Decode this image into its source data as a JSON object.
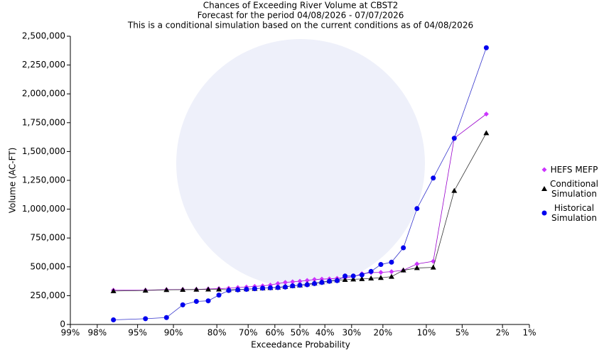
{
  "chart_data": {
    "type": "line",
    "title": "Chances of Exceeding River Volume at CBST2",
    "subtitle": "Forecast for the period 04/08/2026 - 07/07/2026",
    "note": "This is a conditional simulation based on the current conditions as of 04/08/2026",
    "x_label": "Exceedance Probability",
    "y_label": "Volume (AC-FT)",
    "xscale": "probability",
    "grid": false,
    "legend_position": "right",
    "xlim": [
      99,
      1
    ],
    "xticks": [
      {
        "value": 99,
        "label": "99%"
      },
      {
        "value": 98,
        "label": "98%"
      },
      {
        "value": 95,
        "label": "95%"
      },
      {
        "value": 90,
        "label": "90%"
      },
      {
        "value": 80,
        "label": "80%"
      },
      {
        "value": 70,
        "label": "70%"
      },
      {
        "value": 60,
        "label": "60%"
      },
      {
        "value": 50,
        "label": "50%"
      },
      {
        "value": 40,
        "label": "40%"
      },
      {
        "value": 30,
        "label": "30%"
      },
      {
        "value": 20,
        "label": "20%"
      },
      {
        "value": 10,
        "label": "10%"
      },
      {
        "value": 5,
        "label": "5%"
      },
      {
        "value": 2,
        "label": "2%"
      },
      {
        "value": 1,
        "label": "1%"
      }
    ],
    "ylim": [
      0,
      2500000
    ],
    "yticks": [
      0,
      {
        "value": 250000,
        "label": "250,000"
      },
      {
        "value": 500000,
        "label": "500,000"
      },
      {
        "value": 750000,
        "label": "750,000"
      },
      {
        "value": 1000000,
        "label": "1,000,000"
      },
      {
        "value": 1250000,
        "label": "1,250,000"
      },
      {
        "value": 1500000,
        "label": "1,500,000"
      },
      {
        "value": 1750000,
        "label": "1,750,000"
      },
      {
        "value": 2000000,
        "label": "2,000,000"
      },
      {
        "value": 2250000,
        "label": "2,250,000"
      },
      {
        "value": 2500000,
        "label": "2,500,000"
      }
    ],
    "x": [
      97.06,
      94.12,
      91.18,
      88.24,
      85.29,
      82.35,
      79.41,
      76.47,
      73.53,
      70.59,
      67.65,
      64.71,
      61.76,
      58.82,
      55.88,
      52.94,
      50,
      47.06,
      44.12,
      41.18,
      38.24,
      35.29,
      32.35,
      29.41,
      26.47,
      23.53,
      20.59,
      17.65,
      14.71,
      11.76,
      8.82,
      5.88,
      2.94
    ],
    "series": [
      {
        "name": "HEFS MEFP",
        "color": "#9900cc",
        "marker": "diamond",
        "point_color": "#cc33ff",
        "values": [
          297000,
          297000,
          302000,
          303000,
          304000,
          308000,
          311000,
          314000,
          320000,
          325000,
          330000,
          335000,
          342000,
          355000,
          365000,
          370000,
          375000,
          382000,
          390000,
          393000,
          396000,
          400000,
          405000,
          415000,
          440000,
          450000,
          452000,
          458000,
          470000,
          525000,
          548000,
          1615000,
          1825000
        ]
      },
      {
        "name": "Conditional Simulation",
        "color": "#333333",
        "marker": "triangle",
        "point_color": "#000000",
        "values": [
          290000,
          295000,
          300000,
          302000,
          303000,
          305000,
          305000,
          300000,
          303000,
          307000,
          310000,
          315000,
          318000,
          322000,
          328000,
          335000,
          340000,
          350000,
          358000,
          368000,
          378000,
          385000,
          388000,
          392000,
          395000,
          400000,
          405000,
          415000,
          470000,
          490000,
          495000,
          1160000,
          1660000
        ]
      },
      {
        "name": "Historical Simulation",
        "color": "#3333cc",
        "marker": "circle",
        "point_color": "#0000ee",
        "values": [
          40000,
          50000,
          60000,
          170000,
          200000,
          205000,
          255000,
          295000,
          300000,
          305000,
          310000,
          315000,
          318000,
          320000,
          325000,
          335000,
          340000,
          345000,
          355000,
          365000,
          375000,
          380000,
          420000,
          420000,
          430000,
          460000,
          520000,
          540000,
          665000,
          1005000,
          1270000,
          1615000,
          2400000
        ]
      }
    ]
  }
}
